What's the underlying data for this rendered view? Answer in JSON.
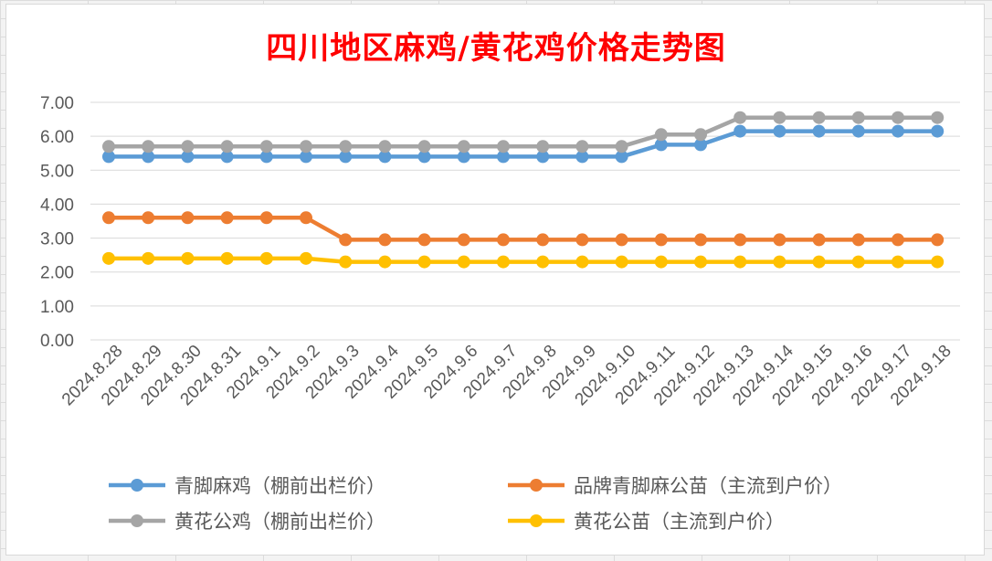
{
  "chart_data": {
    "type": "line",
    "title": "四川地区麻鸡/黄花鸡价格走势图",
    "xlabel": "",
    "ylabel": "",
    "ylim": [
      0,
      7
    ],
    "yticks": [
      "0.00",
      "1.00",
      "2.00",
      "3.00",
      "4.00",
      "5.00",
      "6.00",
      "7.00"
    ],
    "grid": "horizontal",
    "legend_position": "bottom",
    "categories": [
      "2024.8.28",
      "2024.8.29",
      "2024.8.30",
      "2024.8.31",
      "2024.9.1",
      "2024.9.2",
      "2024.9.3",
      "2024.9.4",
      "2024.9.5",
      "2024.9.6",
      "2024.9.7",
      "2024.9.8",
      "2024.9.9",
      "2024.9.10",
      "2024.9.11",
      "2024.9.12",
      "2024.9.13",
      "2024.9.14",
      "2024.9.15",
      "2024.9.16",
      "2024.9.17",
      "2024.9.18"
    ],
    "series": [
      {
        "name": "青脚麻鸡（棚前出栏价）",
        "color": "#5b9bd5",
        "values": [
          5.4,
          5.4,
          5.4,
          5.4,
          5.4,
          5.4,
          5.4,
          5.4,
          5.4,
          5.4,
          5.4,
          5.4,
          5.4,
          5.4,
          5.75,
          5.75,
          6.15,
          6.15,
          6.15,
          6.15,
          6.15,
          6.15
        ]
      },
      {
        "name": "品牌青脚麻公苗（主流到户价）",
        "color": "#ed7d31",
        "values": [
          3.6,
          3.6,
          3.6,
          3.6,
          3.6,
          3.6,
          2.95,
          2.95,
          2.95,
          2.95,
          2.95,
          2.95,
          2.95,
          2.95,
          2.95,
          2.95,
          2.95,
          2.95,
          2.95,
          2.95,
          2.95,
          2.95
        ]
      },
      {
        "name": "黄花公鸡（棚前出栏价）",
        "color": "#a5a5a5",
        "values": [
          5.7,
          5.7,
          5.7,
          5.7,
          5.7,
          5.7,
          5.7,
          5.7,
          5.7,
          5.7,
          5.7,
          5.7,
          5.7,
          5.7,
          6.05,
          6.05,
          6.55,
          6.55,
          6.55,
          6.55,
          6.55,
          6.55
        ]
      },
      {
        "name": "黄花公苗（主流到户价）",
        "color": "#ffc000",
        "values": [
          2.4,
          2.4,
          2.4,
          2.4,
          2.4,
          2.4,
          2.3,
          2.3,
          2.3,
          2.3,
          2.3,
          2.3,
          2.3,
          2.3,
          2.3,
          2.3,
          2.3,
          2.3,
          2.3,
          2.3,
          2.3,
          2.3
        ]
      }
    ]
  }
}
